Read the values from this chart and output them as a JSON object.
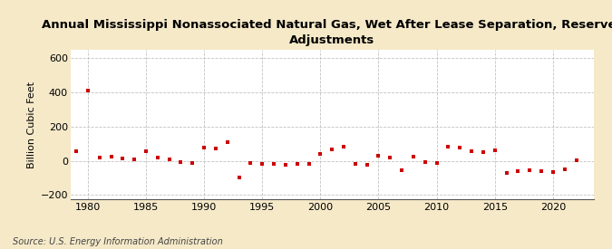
{
  "title": "Annual Mississippi Nonassociated Natural Gas, Wet After Lease Separation, Reserves\nAdjustments",
  "ylabel": "Billion Cubic Feet",
  "source": "Source: U.S. Energy Information Administration",
  "background_color": "#f5e9c8",
  "plot_background_color": "#ffffff",
  "marker_color": "#cc0000",
  "grid_color": "#bbbbbb",
  "ylim": [
    -225,
    650
  ],
  "yticks": [
    -200,
    0,
    200,
    400,
    600
  ],
  "xlim": [
    1978.5,
    2023.5
  ],
  "xticks": [
    1980,
    1985,
    1990,
    1995,
    2000,
    2005,
    2010,
    2015,
    2020
  ],
  "years": [
    1979,
    1980,
    1981,
    1982,
    1983,
    1984,
    1985,
    1986,
    1987,
    1988,
    1989,
    1990,
    1991,
    1992,
    1993,
    1994,
    1995,
    1996,
    1997,
    1998,
    1999,
    2000,
    2001,
    2002,
    2003,
    2004,
    2005,
    2006,
    2007,
    2008,
    2009,
    2010,
    2011,
    2012,
    2013,
    2014,
    2015,
    2016,
    2017,
    2018,
    2019,
    2020,
    2021,
    2022
  ],
  "values": [
    55,
    410,
    20,
    25,
    15,
    10,
    55,
    20,
    10,
    -10,
    -15,
    75,
    70,
    110,
    -100,
    -15,
    -20,
    -20,
    -25,
    -20,
    -20,
    40,
    65,
    80,
    -20,
    -25,
    30,
    20,
    -55,
    25,
    -10,
    -15,
    80,
    75,
    55,
    50,
    60,
    -70,
    -60,
    -55,
    -60,
    -65,
    -50,
    5
  ],
  "title_fontsize": 9.5,
  "tick_fontsize": 8,
  "ylabel_fontsize": 8,
  "source_fontsize": 7
}
